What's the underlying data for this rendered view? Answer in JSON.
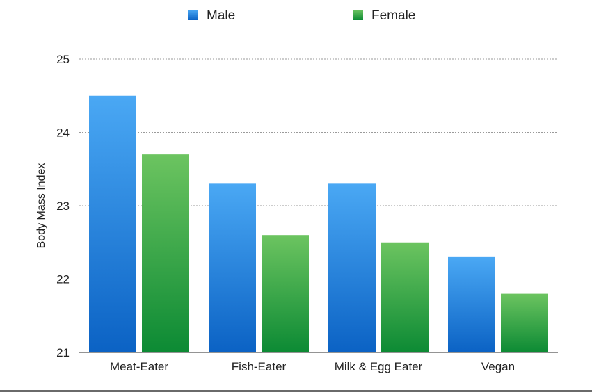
{
  "chart_data": {
    "type": "bar",
    "categories": [
      "Meat-Eater",
      "Fish-Eater",
      "Milk & Egg Eater",
      "Vegan"
    ],
    "series": [
      {
        "name": "Male",
        "values": [
          24.5,
          23.3,
          23.3,
          22.3
        ],
        "color_top": "#4aa8f4",
        "color_bottom": "#0b62c4"
      },
      {
        "name": "Female",
        "values": [
          23.7,
          22.6,
          22.5,
          21.8
        ],
        "color_top": "#6cc460",
        "color_bottom": "#0c8a34"
      }
    ],
    "title": "",
    "xlabel": "",
    "ylabel": "Body Mass Index",
    "ylim": [
      21,
      25
    ],
    "yticks": [
      21,
      22,
      23,
      24,
      25
    ],
    "grid": true,
    "legend_position": "top-center"
  }
}
